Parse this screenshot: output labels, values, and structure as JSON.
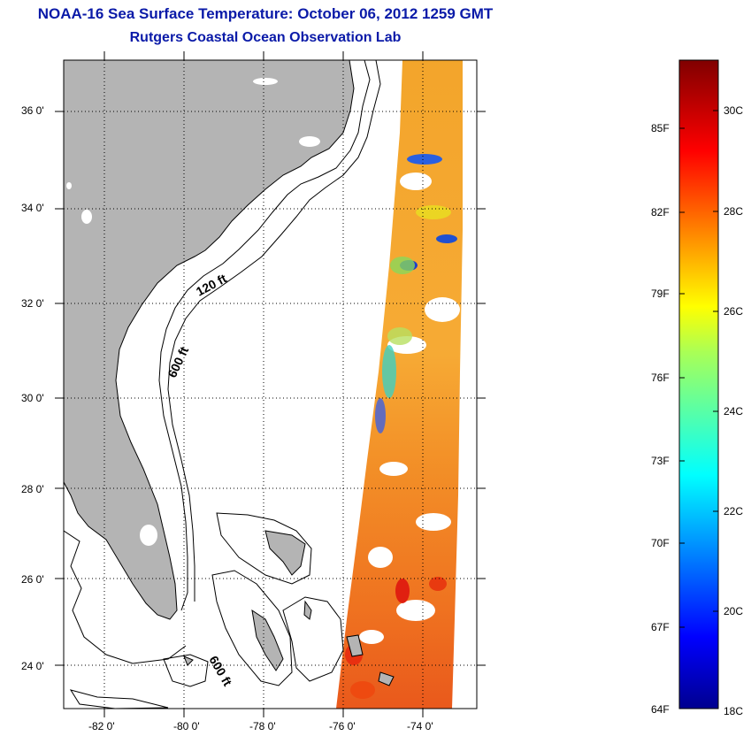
{
  "header": {
    "title": "NOAA-16 Sea Surface Temperature:  October 06, 2012 1259 GMT",
    "subtitle": "Rutgers Coastal Ocean Observation Lab"
  },
  "map": {
    "lat_labels": [
      "36 0'",
      "34 0'",
      "32 0'",
      "30 0'",
      "28 0'",
      "26 0'",
      "24 0'"
    ],
    "lon_labels": [
      "-82 0'",
      "-80 0'",
      "-78 0'",
      "-76 0'",
      "-74 0'"
    ],
    "contour_labels": [
      "120 ft",
      "600 ft",
      "600 ft"
    ],
    "land_color": "#b4b4b4",
    "lat_range": [
      23,
      37
    ],
    "lon_range": [
      -83,
      -73
    ]
  },
  "colorbar": {
    "fahrenheit_labels": [
      "85F",
      "82F",
      "79F",
      "76F",
      "73F",
      "70F",
      "67F",
      "64F"
    ],
    "celsius_labels": [
      "30C",
      "28C",
      "26C",
      "24C",
      "22C",
      "20C",
      "18C"
    ],
    "colormap": "jet"
  }
}
